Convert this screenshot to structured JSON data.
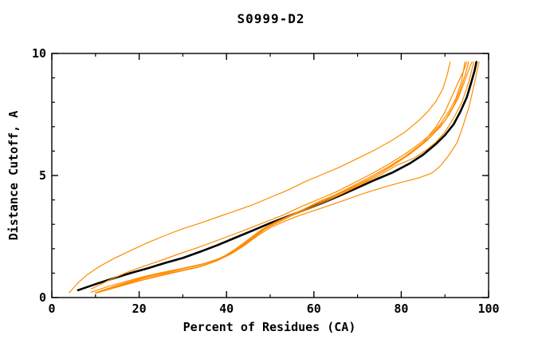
{
  "chart_data": {
    "type": "line",
    "title": "S0999-D2",
    "xlabel": "Percent of Residues (CA)",
    "ylabel": "Distance Cutoff, A",
    "xlim": [
      0,
      100
    ],
    "ylim": [
      0,
      10
    ],
    "grid": false,
    "legend": "none",
    "x_major_ticks": [
      0,
      20,
      40,
      60,
      80,
      100
    ],
    "x_minor_ticks": [
      10,
      30,
      50,
      70,
      90
    ],
    "y_major_ticks": [
      0,
      5,
      10
    ],
    "y_minor_ticks": [
      1,
      2,
      3,
      4,
      6,
      7,
      8,
      9
    ],
    "colors": {
      "reference": "#000000",
      "model": "#ff8c00",
      "frame": "#000000"
    },
    "series": [
      {
        "name": "reference-black",
        "color_role": "reference",
        "width": 2.6,
        "points": [
          [
            6,
            0.3
          ],
          [
            10,
            0.55
          ],
          [
            14,
            0.78
          ],
          [
            18,
            1.0
          ],
          [
            22,
            1.2
          ],
          [
            26,
            1.42
          ],
          [
            30,
            1.62
          ],
          [
            34,
            1.88
          ],
          [
            38,
            2.15
          ],
          [
            42,
            2.45
          ],
          [
            46,
            2.75
          ],
          [
            50,
            3.05
          ],
          [
            54,
            3.32
          ],
          [
            58,
            3.6
          ],
          [
            62,
            3.88
          ],
          [
            66,
            4.18
          ],
          [
            70,
            4.5
          ],
          [
            74,
            4.82
          ],
          [
            78,
            5.12
          ],
          [
            82,
            5.5
          ],
          [
            85,
            5.85
          ],
          [
            88,
            6.3
          ],
          [
            90,
            6.65
          ],
          [
            92,
            7.1
          ],
          [
            93.5,
            7.6
          ],
          [
            95,
            8.2
          ],
          [
            96,
            8.8
          ],
          [
            96.8,
            9.3
          ],
          [
            97.2,
            9.65
          ]
        ]
      },
      {
        "name": "model-high-outlier",
        "color_role": "model",
        "width": 1.2,
        "points": [
          [
            4,
            0.2
          ],
          [
            6,
            0.6
          ],
          [
            8,
            0.92
          ],
          [
            11,
            1.28
          ],
          [
            14,
            1.58
          ],
          [
            18,
            1.92
          ],
          [
            22,
            2.25
          ],
          [
            26,
            2.55
          ],
          [
            30,
            2.82
          ],
          [
            34,
            3.05
          ],
          [
            38,
            3.3
          ],
          [
            42,
            3.55
          ],
          [
            46,
            3.8
          ],
          [
            50,
            4.1
          ],
          [
            54,
            4.4
          ],
          [
            58,
            4.75
          ],
          [
            62,
            5.05
          ],
          [
            66,
            5.35
          ],
          [
            70,
            5.7
          ],
          [
            74,
            6.05
          ],
          [
            78,
            6.45
          ],
          [
            81,
            6.8
          ],
          [
            84,
            7.25
          ],
          [
            86,
            7.6
          ],
          [
            88,
            8.05
          ],
          [
            89.5,
            8.55
          ],
          [
            90.5,
            9.1
          ],
          [
            91.2,
            9.65
          ]
        ]
      },
      {
        "name": "model-2",
        "color_role": "model",
        "width": 1.2,
        "points": [
          [
            9,
            0.35
          ],
          [
            13,
            0.7
          ],
          [
            17,
            1.02
          ],
          [
            21,
            1.28
          ],
          [
            25,
            1.52
          ],
          [
            29,
            1.78
          ],
          [
            33,
            2.02
          ],
          [
            37,
            2.28
          ],
          [
            41,
            2.55
          ],
          [
            45,
            2.82
          ],
          [
            49,
            3.1
          ],
          [
            53,
            3.38
          ],
          [
            57,
            3.72
          ],
          [
            61,
            4.02
          ],
          [
            65,
            4.32
          ],
          [
            69,
            4.68
          ],
          [
            73,
            5.05
          ],
          [
            77,
            5.45
          ],
          [
            81,
            5.9
          ],
          [
            84,
            6.28
          ],
          [
            87,
            6.72
          ],
          [
            89,
            7.12
          ],
          [
            91,
            7.65
          ],
          [
            92.5,
            8.15
          ],
          [
            93.8,
            8.85
          ],
          [
            94.6,
            9.65
          ]
        ]
      },
      {
        "name": "model-3",
        "color_role": "model",
        "width": 1.2,
        "points": [
          [
            9,
            0.22
          ],
          [
            13,
            0.46
          ],
          [
            17,
            0.66
          ],
          [
            21,
            0.86
          ],
          [
            25,
            1.02
          ],
          [
            29,
            1.16
          ],
          [
            33,
            1.3
          ],
          [
            36,
            1.44
          ],
          [
            39,
            1.64
          ],
          [
            42,
            1.98
          ],
          [
            45,
            2.38
          ],
          [
            48,
            2.78
          ],
          [
            51,
            3.08
          ],
          [
            54,
            3.32
          ],
          [
            57,
            3.56
          ],
          [
            61,
            3.92
          ],
          [
            65,
            4.22
          ],
          [
            69,
            4.58
          ],
          [
            73,
            4.95
          ],
          [
            77,
            5.35
          ],
          [
            81,
            5.8
          ],
          [
            85,
            6.35
          ],
          [
            88,
            7.0
          ],
          [
            90,
            7.6
          ],
          [
            91.5,
            8.2
          ],
          [
            93,
            8.8
          ],
          [
            94.3,
            9.3
          ],
          [
            95,
            9.65
          ]
        ]
      },
      {
        "name": "model-4",
        "color_role": "model",
        "width": 1.2,
        "points": [
          [
            10,
            0.2
          ],
          [
            14,
            0.42
          ],
          [
            18,
            0.62
          ],
          [
            22,
            0.84
          ],
          [
            26,
            1.0
          ],
          [
            30,
            1.18
          ],
          [
            34,
            1.34
          ],
          [
            37,
            1.5
          ],
          [
            40,
            1.72
          ],
          [
            43,
            2.08
          ],
          [
            46,
            2.48
          ],
          [
            49,
            2.88
          ],
          [
            52,
            3.14
          ],
          [
            55,
            3.4
          ],
          [
            58,
            3.64
          ],
          [
            62,
            3.96
          ],
          [
            66,
            4.3
          ],
          [
            70,
            4.62
          ],
          [
            74,
            4.98
          ],
          [
            78,
            5.4
          ],
          [
            82,
            5.88
          ],
          [
            86,
            6.45
          ],
          [
            89,
            7.0
          ],
          [
            91,
            7.5
          ],
          [
            93,
            8.15
          ],
          [
            94.5,
            8.85
          ],
          [
            95.5,
            9.35
          ],
          [
            96.2,
            9.65
          ]
        ]
      },
      {
        "name": "model-5",
        "color_role": "model",
        "width": 1.2,
        "points": [
          [
            11,
            0.26
          ],
          [
            15,
            0.5
          ],
          [
            19,
            0.72
          ],
          [
            23,
            0.92
          ],
          [
            27,
            1.08
          ],
          [
            31,
            1.24
          ],
          [
            35,
            1.4
          ],
          [
            38,
            1.58
          ],
          [
            41,
            1.82
          ],
          [
            44,
            2.18
          ],
          [
            47,
            2.58
          ],
          [
            50,
            2.98
          ],
          [
            53,
            3.22
          ],
          [
            56,
            3.48
          ],
          [
            60,
            3.8
          ],
          [
            64,
            4.1
          ],
          [
            68,
            4.42
          ],
          [
            72,
            4.78
          ],
          [
            76,
            5.18
          ],
          [
            80,
            5.65
          ],
          [
            84,
            6.15
          ],
          [
            87,
            6.65
          ],
          [
            90,
            7.25
          ],
          [
            92,
            7.85
          ],
          [
            93.6,
            8.55
          ],
          [
            94.7,
            9.15
          ],
          [
            95.4,
            9.65
          ]
        ]
      },
      {
        "name": "model-6",
        "color_role": "model",
        "width": 1.2,
        "points": [
          [
            10,
            0.18
          ],
          [
            14,
            0.38
          ],
          [
            18,
            0.58
          ],
          [
            22,
            0.78
          ],
          [
            26,
            0.96
          ],
          [
            30,
            1.12
          ],
          [
            34,
            1.28
          ],
          [
            37,
            1.46
          ],
          [
            40,
            1.7
          ],
          [
            43,
            2.02
          ],
          [
            46,
            2.42
          ],
          [
            49,
            2.82
          ],
          [
            52,
            3.1
          ],
          [
            55,
            3.36
          ],
          [
            59,
            3.66
          ],
          [
            63,
            3.96
          ],
          [
            67,
            4.3
          ],
          [
            71,
            4.64
          ],
          [
            75,
            5.0
          ],
          [
            79,
            5.42
          ],
          [
            83,
            5.72
          ],
          [
            86,
            6.08
          ],
          [
            88,
            6.38
          ],
          [
            90,
            6.78
          ],
          [
            92,
            7.35
          ],
          [
            94,
            8.05
          ],
          [
            95.5,
            8.85
          ],
          [
            96.6,
            9.65
          ]
        ]
      },
      {
        "name": "model-low-outlier",
        "color_role": "model",
        "width": 1.2,
        "points": [
          [
            10,
            0.2
          ],
          [
            15,
            0.45
          ],
          [
            20,
            0.68
          ],
          [
            25,
            0.9
          ],
          [
            30,
            1.1
          ],
          [
            34,
            1.26
          ],
          [
            38,
            1.52
          ],
          [
            41,
            1.78
          ],
          [
            44,
            2.12
          ],
          [
            47,
            2.52
          ],
          [
            50,
            2.86
          ],
          [
            53,
            3.1
          ],
          [
            56,
            3.32
          ],
          [
            60,
            3.56
          ],
          [
            64,
            3.8
          ],
          [
            68,
            4.05
          ],
          [
            72,
            4.3
          ],
          [
            76,
            4.52
          ],
          [
            80,
            4.72
          ],
          [
            84,
            4.9
          ],
          [
            87,
            5.1
          ],
          [
            89,
            5.4
          ],
          [
            91,
            5.85
          ],
          [
            92.8,
            6.35
          ],
          [
            94,
            6.95
          ],
          [
            95.5,
            7.8
          ],
          [
            96.8,
            8.8
          ],
          [
            97.8,
            9.65
          ]
        ]
      }
    ]
  }
}
